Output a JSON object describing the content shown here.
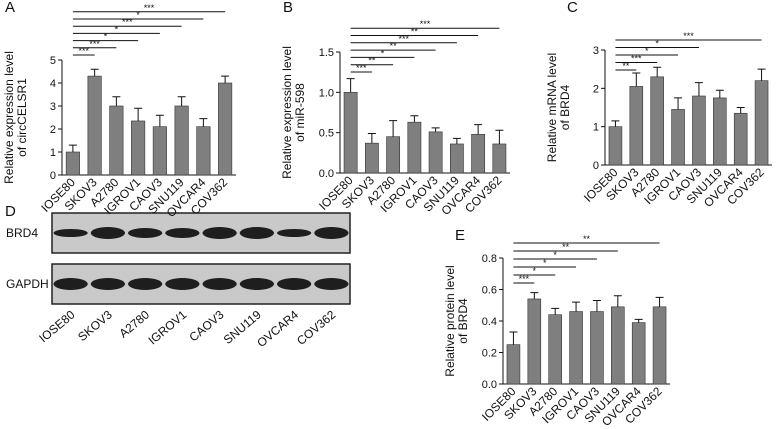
{
  "chart_data": [
    {
      "type": "bar",
      "panel_label": "A",
      "ylabel": [
        "Relative expression level",
        "of circCELSR1"
      ],
      "categories": [
        "IOSE80",
        "SKOV3",
        "A2780",
        "IGROV1",
        "CAOV3",
        "SNU119",
        "OVCAR4",
        "COV362"
      ],
      "values": [
        1.0,
        4.3,
        3.0,
        2.35,
        2.1,
        3.0,
        2.1,
        4.0
      ],
      "errors": [
        0.3,
        0.3,
        0.4,
        0.55,
        0.5,
        0.4,
        0.35,
        0.3
      ],
      "significance": [
        null,
        "***",
        "***",
        "*",
        "*",
        "***",
        "*",
        "***"
      ],
      "color": "#7f7f7f",
      "ylim": [
        0,
        5
      ],
      "yticks": [
        0,
        1,
        2,
        3,
        4,
        5
      ]
    },
    {
      "type": "bar",
      "panel_label": "B",
      "ylabel": [
        "Relative expression level",
        "of miR-598"
      ],
      "categories": [
        "IOSE80",
        "SKOV3",
        "A2780",
        "IGROV1",
        "CAOV3",
        "SNU119",
        "OVCAR4",
        "COV362"
      ],
      "values": [
        1.0,
        0.37,
        0.45,
        0.63,
        0.51,
        0.36,
        0.48,
        0.36
      ],
      "errors": [
        0.17,
        0.12,
        0.2,
        0.08,
        0.05,
        0.07,
        0.12,
        0.17
      ],
      "significance": [
        null,
        "***",
        "**",
        "*",
        "**",
        "***",
        "**",
        "***"
      ],
      "color": "#7f7f7f",
      "ylim": [
        0,
        1.5
      ],
      "yticks": [
        {
          "value": 0,
          "label": "0.0"
        },
        0.5,
        {
          "value": 1,
          "label": "1.0"
        },
        1.5
      ]
    },
    {
      "type": "bar",
      "panel_label": "C",
      "ylabel": [
        "Relative mRNA level",
        "of BRD4"
      ],
      "categories": [
        "IOSE80",
        "SKOV3",
        "A2780",
        "IGROV1",
        "CAOV3",
        "SNU119",
        "OVCAR4",
        "COV362"
      ],
      "values": [
        1.0,
        2.05,
        2.3,
        1.45,
        1.8,
        1.75,
        1.35,
        2.2
      ],
      "errors": [
        0.15,
        0.35,
        0.25,
        0.3,
        0.35,
        0.2,
        0.15,
        0.3
      ],
      "significance": [
        null,
        "**",
        "***",
        "*",
        "*",
        null,
        null,
        "***"
      ],
      "color": "#7f7f7f",
      "ylim": [
        0,
        3
      ],
      "yticks": [
        0,
        1,
        2,
        3
      ]
    },
    {
      "type": "bar",
      "panel_label": "E",
      "ylabel": [
        "Relative protein level",
        "of BRD4"
      ],
      "categories": [
        "IOSE80",
        "SKOV3",
        "A2780",
        "IGROV1",
        "CAOV3",
        "SNU119",
        "OVCAR4",
        "COV362"
      ],
      "values": [
        0.25,
        0.54,
        0.44,
        0.46,
        0.46,
        0.49,
        0.39,
        0.49
      ],
      "errors": [
        0.08,
        0.04,
        0.04,
        0.06,
        0.07,
        0.07,
        0.02,
        0.06
      ],
      "significance": [
        null,
        "***",
        "*",
        "*",
        "*",
        "**",
        null,
        "**"
      ],
      "color": "#7f7f7f",
      "ylim": [
        0,
        0.8
      ],
      "yticks": [
        {
          "value": 0,
          "label": "0.0"
        },
        0.2,
        0.4,
        0.6,
        0.8
      ]
    }
  ],
  "blot": {
    "panel_label": "D",
    "rows": [
      "BRD4",
      "GAPDH"
    ],
    "lanes": [
      "IOSE80",
      "SKOV3",
      "A2780",
      "IGROV1",
      "CAOV3",
      "SNU119",
      "OVCAR4",
      "COV362"
    ]
  }
}
